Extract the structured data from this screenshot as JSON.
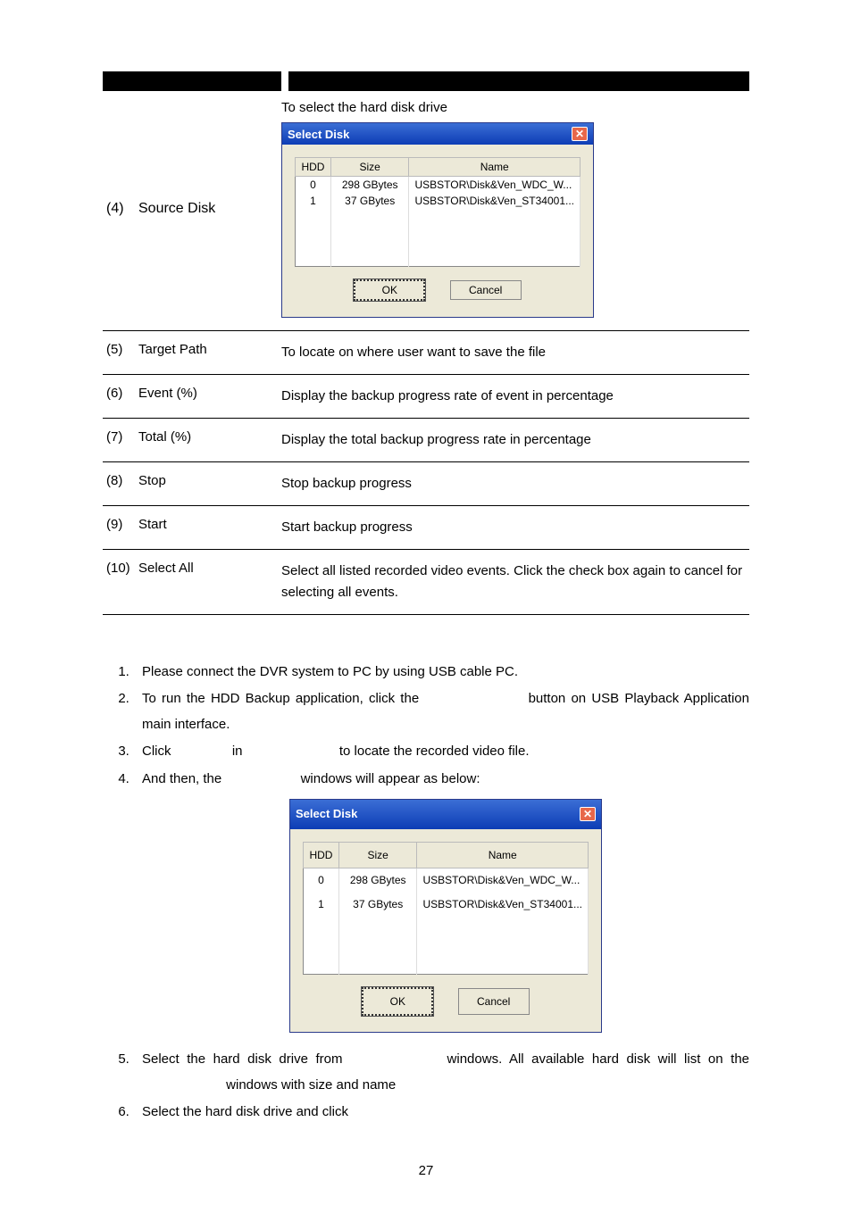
{
  "dialog": {
    "title": "Select Disk",
    "columns": {
      "hdd": "HDD",
      "size": "Size",
      "name": "Name"
    },
    "rows": [
      {
        "hdd": "0",
        "size": "298 GBytes",
        "name": "USBSTOR\\Disk&Ven_WDC_W..."
      },
      {
        "hdd": "1",
        "size": "37 GBytes",
        "name": "USBSTOR\\Disk&Ven_ST34001..."
      }
    ],
    "ok": "OK",
    "cancel": "Cancel"
  },
  "row4": {
    "num": "(4)",
    "label": "Source Disk",
    "caption": "To select the hard disk drive"
  },
  "defs": [
    {
      "num": "(5)",
      "label": "Target Path",
      "desc": "To locate on where user want to save the file"
    },
    {
      "num": "(6)",
      "label": "Event (%)",
      "desc": "Display the backup progress rate of event in percentage"
    },
    {
      "num": "(7)",
      "label": "Total (%)",
      "desc": "Display the total backup progress rate in percentage"
    },
    {
      "num": "(8)",
      "label": "Stop",
      "desc": "Stop backup progress"
    },
    {
      "num": "(9)",
      "label": "Start",
      "desc": "Start backup progress"
    },
    {
      "num": "(10)",
      "label": "Select All",
      "desc": "Select all listed recorded video events. Click the check box again to cancel for selecting all events."
    }
  ],
  "steps": {
    "s1": "Please connect the DVR system to PC by using USB cable PC.",
    "s2a": "To run the HDD Backup application, click the ",
    "s2b": " button on USB Playback Application main interface.",
    "s3a": "Click ",
    "s3b": " in ",
    "s3c": " to locate the recorded video file.",
    "s4a": "And then, the ",
    "s4b": " windows will appear as below:",
    "s5a": "Select the hard disk drive from ",
    "s5b": " windows. All available hard disk will list on the ",
    "s5c": " windows with size and name",
    "s6": "Select the hard disk drive and click "
  },
  "pageNumber": "27",
  "colors": {
    "titlebar_start": "#3b6ed5",
    "titlebar_end": "#0d3db5",
    "dialog_bg": "#ece9d8",
    "close_bg": "#e7674a"
  }
}
